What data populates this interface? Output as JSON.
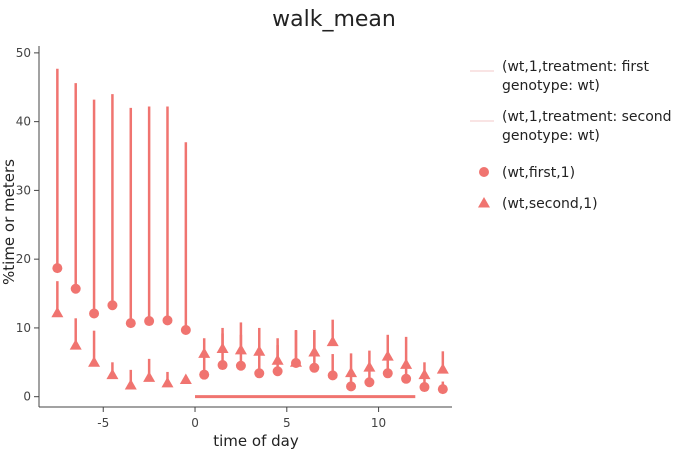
{
  "chart_data": {
    "type": "scatter",
    "title": "walk_mean",
    "xlabel": "time of day",
    "ylabel": "%time or meters",
    "xlim": [
      -8.5,
      14
    ],
    "ylim": [
      -1.5,
      51
    ],
    "xticks": [
      -5,
      0,
      5,
      10
    ],
    "yticks": [
      0,
      10,
      20,
      30,
      40,
      50
    ],
    "grid": false,
    "legend_position": "right",
    "color": "#f07470",
    "series": [
      {
        "name": "(wt,first,1)",
        "marker": "circle",
        "points": [
          {
            "x": -7.5,
            "y": 18.7,
            "hi": 47.7
          },
          {
            "x": -6.5,
            "y": 15.7,
            "hi": 45.6
          },
          {
            "x": -5.5,
            "y": 12.1,
            "hi": 43.2
          },
          {
            "x": -4.5,
            "y": 13.3,
            "hi": 44.0
          },
          {
            "x": -3.5,
            "y": 10.7,
            "hi": 42.0
          },
          {
            "x": -2.5,
            "y": 11.0,
            "hi": 42.2
          },
          {
            "x": -1.5,
            "y": 11.1,
            "hi": 42.2
          },
          {
            "x": -0.5,
            "y": 9.7,
            "hi": 37.0
          },
          {
            "x": 0.5,
            "y": 3.2,
            "hi": 6.4
          },
          {
            "x": 1.5,
            "y": 4.6,
            "hi": 9.2
          },
          {
            "x": 2.5,
            "y": 4.5,
            "hi": 9.0
          },
          {
            "x": 3.5,
            "y": 3.4,
            "hi": 7.3
          },
          {
            "x": 4.5,
            "y": 3.7,
            "hi": 7.5
          },
          {
            "x": 5.5,
            "y": 4.9,
            "hi": 9.6
          },
          {
            "x": 6.5,
            "y": 4.2,
            "hi": 9.4
          },
          {
            "x": 7.5,
            "y": 3.1,
            "hi": 6.2
          },
          {
            "x": 8.5,
            "y": 1.5,
            "hi": 3.0
          },
          {
            "x": 9.5,
            "y": 2.1,
            "hi": 4.1
          },
          {
            "x": 10.5,
            "y": 3.4,
            "hi": 6.0
          },
          {
            "x": 11.5,
            "y": 2.6,
            "hi": 5.2
          },
          {
            "x": 12.5,
            "y": 1.4,
            "hi": 2.6
          },
          {
            "x": 13.5,
            "y": 1.1,
            "hi": 2.2
          }
        ]
      },
      {
        "name": "(wt,second,1)",
        "marker": "triangle",
        "points": [
          {
            "x": -7.5,
            "y": 12.2,
            "hi": 16.8
          },
          {
            "x": -6.5,
            "y": 7.5,
            "hi": 11.4
          },
          {
            "x": -5.5,
            "y": 5.0,
            "hi": 9.6
          },
          {
            "x": -4.5,
            "y": 3.2,
            "hi": 5.0
          },
          {
            "x": -3.5,
            "y": 1.7,
            "hi": 3.9
          },
          {
            "x": -2.5,
            "y": 2.8,
            "hi": 5.5
          },
          {
            "x": -1.5,
            "y": 2.0,
            "hi": 3.6
          },
          {
            "x": -0.5,
            "y": 2.5,
            "hi": 2.5
          },
          {
            "x": 0.5,
            "y": 6.3,
            "hi": 8.5
          },
          {
            "x": 1.5,
            "y": 7.0,
            "hi": 10.0
          },
          {
            "x": 2.5,
            "y": 6.8,
            "hi": 10.8
          },
          {
            "x": 3.5,
            "y": 6.6,
            "hi": 10.0
          },
          {
            "x": 4.5,
            "y": 5.3,
            "hi": 8.5
          },
          {
            "x": 5.5,
            "y": 5.0,
            "hi": 9.7
          },
          {
            "x": 6.5,
            "y": 6.5,
            "hi": 9.7
          },
          {
            "x": 7.5,
            "y": 8.0,
            "hi": 11.2
          },
          {
            "x": 8.5,
            "y": 3.5,
            "hi": 6.3
          },
          {
            "x": 9.5,
            "y": 4.3,
            "hi": 6.7
          },
          {
            "x": 10.5,
            "y": 5.9,
            "hi": 9.0
          },
          {
            "x": 11.5,
            "y": 4.7,
            "hi": 8.7
          },
          {
            "x": 12.5,
            "y": 3.2,
            "hi": 5.0
          },
          {
            "x": 13.5,
            "y": 4.0,
            "hi": 6.6
          }
        ]
      }
    ],
    "treatment_lines": [
      {
        "name": "(wt,1,treatment: first\ngenotype: wt)",
        "x": [
          0,
          12
        ],
        "y": 0
      },
      {
        "name": "(wt,1,treatment: second\ngenotype: wt)",
        "x": null,
        "y": null
      }
    ]
  }
}
